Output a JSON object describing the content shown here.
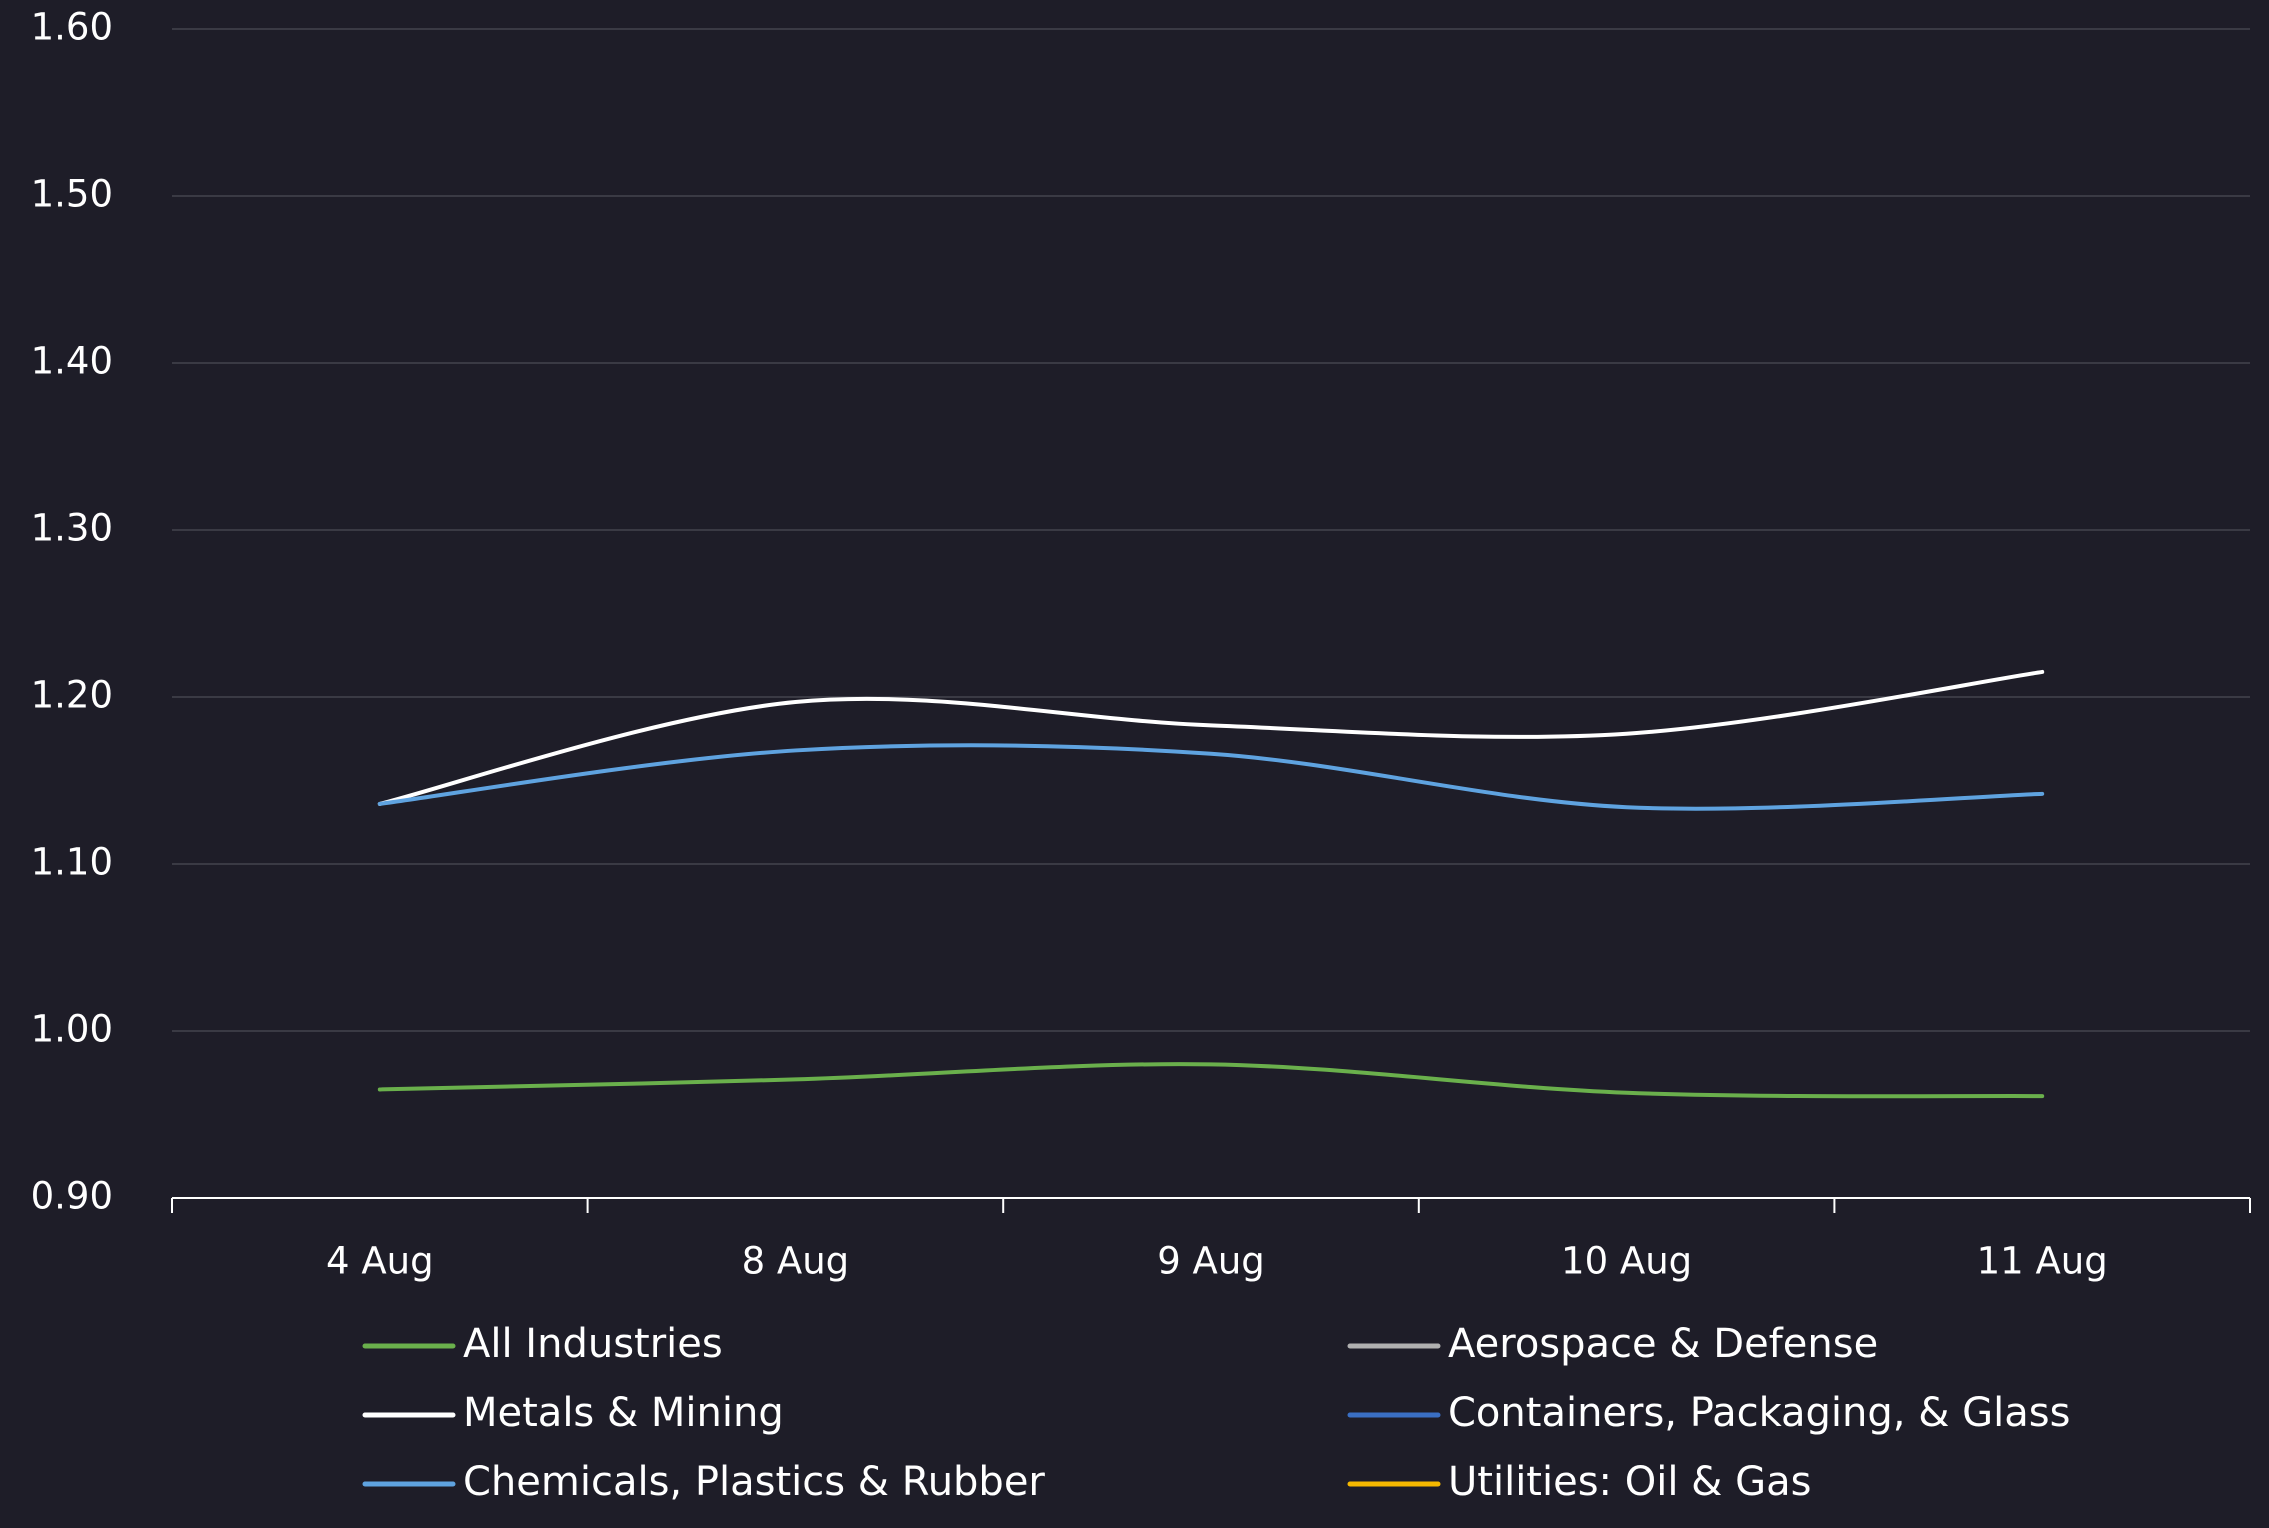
{
  "chart_data": {
    "type": "line",
    "categories": [
      "4 Aug",
      "8 Aug",
      "9 Aug",
      "10 Aug",
      "11 Aug"
    ],
    "series": [
      {
        "name": "All Industries",
        "color": "#6ab04c",
        "values": [
          0.965,
          0.971,
          0.98,
          0.963,
          0.961
        ]
      },
      {
        "name": "Aerospace & Defense",
        "color": "#b0b0b0",
        "values": [
          null,
          null,
          null,
          null,
          null
        ]
      },
      {
        "name": "Metals & Mining",
        "color": "#ffffff",
        "values": [
          1.136,
          1.197,
          1.183,
          1.178,
          1.215
        ]
      },
      {
        "name": "Containers, Packaging, & Glass",
        "color": "#3a6fc4",
        "values": [
          null,
          null,
          null,
          null,
          null
        ]
      },
      {
        "name": "Chemicals, Plastics & Rubber",
        "color": "#5fa3e0",
        "values": [
          1.136,
          1.168,
          1.166,
          1.134,
          1.142
        ]
      },
      {
        "name": "Utilities: Oil & Gas",
        "color": "#f5b800",
        "values": [
          null,
          null,
          null,
          null,
          null
        ]
      }
    ],
    "ylim": [
      0.9,
      1.6
    ],
    "yticks": [
      {
        "value": 0.9,
        "label": "0.90"
      },
      {
        "value": 1.0,
        "label": "1.00"
      },
      {
        "value": 1.1,
        "label": "1.10"
      },
      {
        "value": 1.2,
        "label": "1.20"
      },
      {
        "value": 1.3,
        "label": "1.30"
      },
      {
        "value": 1.4,
        "label": "1.40"
      },
      {
        "value": 1.5,
        "label": "1.50"
      },
      {
        "value": 1.6,
        "label": "1.60"
      }
    ],
    "grid": true,
    "legend": "bottom"
  }
}
